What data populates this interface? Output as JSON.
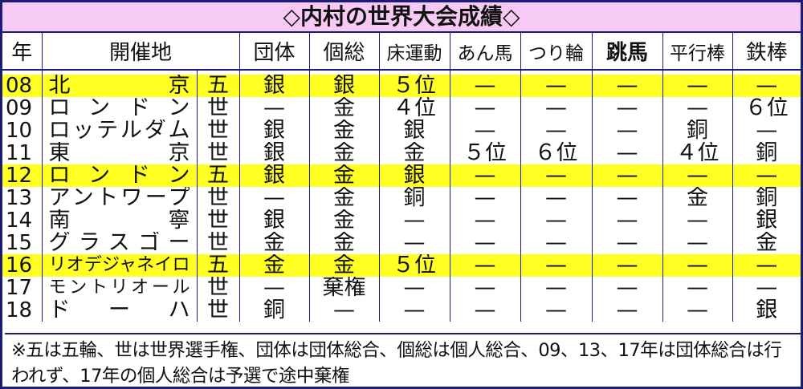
{
  "title": "◇内村の世界大会成績◇",
  "headers": [
    "年",
    "開催地",
    "団体",
    "個総",
    "床運動",
    "あん馬",
    "つり輪",
    "跳馬",
    "平行棒",
    "鉄棒"
  ],
  "colors": {
    "border": "#1c1c78",
    "title_bg": "#f7caf5",
    "highlight": "#ffff22"
  },
  "rows": [
    {
      "year": "08",
      "place": "北　　京",
      "type": "五",
      "highlight": true,
      "results": [
        "銀",
        "銀",
        "５位",
        "—",
        "—",
        "—",
        "—",
        "—"
      ]
    },
    {
      "year": "09",
      "place": "ロンドン",
      "type": "世",
      "highlight": false,
      "results": [
        "—",
        "金",
        "４位",
        "—",
        "—",
        "—",
        "—",
        "６位"
      ]
    },
    {
      "year": "10",
      "place": "ロッテルダム",
      "type": "世",
      "highlight": false,
      "results": [
        "銀",
        "金",
        "銀",
        "—",
        "—",
        "—",
        "銅",
        "—"
      ]
    },
    {
      "year": "11",
      "place": "東　　京",
      "type": "世",
      "highlight": false,
      "results": [
        "銀",
        "金",
        "金",
        "５位",
        "６位",
        "—",
        "４位",
        "銅"
      ]
    },
    {
      "year": "12",
      "place": "ロンドン",
      "type": "五",
      "highlight": true,
      "results": [
        "銀",
        "金",
        "銀",
        "—",
        "—",
        "—",
        "—",
        "—"
      ]
    },
    {
      "year": "13",
      "place": "アントワープ",
      "type": "世",
      "highlight": false,
      "results": [
        "—",
        "金",
        "銅",
        "—",
        "—",
        "—",
        "金",
        "銅"
      ]
    },
    {
      "year": "14",
      "place": "南　　寧",
      "type": "世",
      "highlight": false,
      "results": [
        "銀",
        "金",
        "—",
        "—",
        "—",
        "—",
        "—",
        "銀"
      ]
    },
    {
      "year": "15",
      "place": "グラスゴー",
      "type": "世",
      "highlight": false,
      "results": [
        "金",
        "金",
        "—",
        "—",
        "—",
        "—",
        "—",
        "金"
      ]
    },
    {
      "year": "16",
      "place": "リオデジャネイロ",
      "type": "五",
      "highlight": true,
      "results": [
        "金",
        "金",
        "５位",
        "—",
        "—",
        "—",
        "—",
        "—"
      ]
    },
    {
      "year": "17",
      "place": "モントリオール",
      "type": "世",
      "highlight": false,
      "results": [
        "—",
        "棄権",
        "—",
        "—",
        "—",
        "—",
        "—",
        "—"
      ]
    },
    {
      "year": "18",
      "place": "ド　ー　ハ",
      "type": "世",
      "highlight": false,
      "results": [
        "銅",
        "—",
        "—",
        "—",
        "—",
        "—",
        "—",
        "銀"
      ]
    }
  ],
  "footnote": "※五は五輪、世は世界選手権、団体は団体総合、個総は個人総合、09、13、17年は団体総合は行われず、17年の個人総合は予選で途中棄権"
}
